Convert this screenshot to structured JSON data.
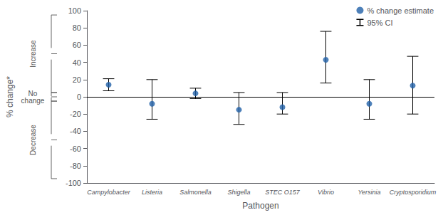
{
  "chart_data": {
    "type": "scatter",
    "xlabel": "Pathogen",
    "ylabel": "% change*",
    "categories": [
      "Campylobacter",
      "Listeria",
      "Salmonella",
      "Shigella",
      "STEC O157",
      "Vibrio",
      "Yersinia",
      "Cryptosporidium"
    ],
    "series": [
      {
        "name": "% change estimate",
        "color": "#2060a8",
        "marker": "circle",
        "values": [
          14,
          -8,
          4,
          -15,
          -12,
          43,
          -8,
          13
        ]
      }
    ],
    "error_bars": {
      "name": "95% CI",
      "color": "#000000",
      "lower": [
        7,
        -26,
        -2,
        -32,
        -20,
        16,
        -26,
        -20
      ],
      "upper": [
        21,
        20,
        10,
        5,
        5,
        76,
        20,
        47
      ]
    },
    "baseline": {
      "value": 0,
      "color": "#000000"
    },
    "annotations": [
      {
        "text": "Increase",
        "from": 5,
        "to": 95,
        "color": "#555555"
      },
      {
        "text": "No\nchange",
        "from": -5,
        "to": 5,
        "color": "#555555"
      },
      {
        "text": "Decrease",
        "from": -95,
        "to": -5,
        "color": "#555555"
      }
    ],
    "ylim": [
      -100,
      100
    ],
    "yticks": [
      -100,
      -80,
      -60,
      -40,
      -20,
      0,
      20,
      40,
      60,
      80,
      100
    ],
    "grid": false,
    "legend": "upper right"
  }
}
